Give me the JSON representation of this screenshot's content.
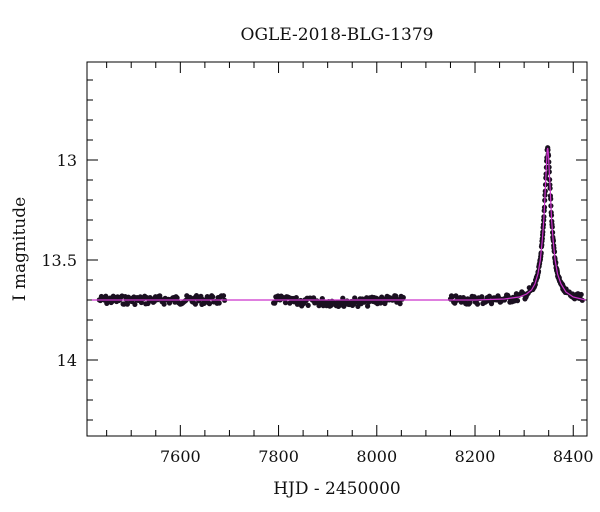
{
  "chart_data": {
    "type": "scatter",
    "title": "OGLE-2018-BLG-1379",
    "xlabel": "HJD - 2450000",
    "ylabel": "I magnitude",
    "xlim": [
      7410,
      8428
    ],
    "ylim": [
      14.38,
      12.51
    ],
    "y_axis_inverted": true,
    "x_ticks": [
      7600,
      7800,
      8000,
      8200,
      8400
    ],
    "y_ticks": [
      13,
      13.5,
      14
    ],
    "grid": false,
    "colors": {
      "points": "#1a1020",
      "model": "#cc33cc",
      "axes": "#000000"
    },
    "observation_seasons": [
      {
        "start": 7435,
        "end": 7692,
        "baseline": 13.7
      },
      {
        "start": 7790,
        "end": 8055,
        "baseline": 13.7
      },
      {
        "start": 8150,
        "end": 8420,
        "baseline": 13.7
      }
    ],
    "peak": {
      "x": 8347,
      "y": 12.94
    },
    "series": [
      {
        "type": "line",
        "points": [
          [
            7420,
            13.7
          ],
          [
            8200,
            13.7
          ],
          [
            8260,
            13.695
          ],
          [
            8290,
            13.685
          ],
          [
            8305,
            13.67
          ],
          [
            8315,
            13.65
          ],
          [
            8322,
            13.62
          ],
          [
            8328,
            13.57
          ],
          [
            8333,
            13.5
          ],
          [
            8337,
            13.4
          ],
          [
            8340,
            13.3
          ],
          [
            8342,
            13.2
          ],
          [
            8344,
            13.1
          ],
          [
            8346,
            13.0
          ],
          [
            8347,
            12.95
          ],
          [
            8348,
            12.94
          ],
          [
            8349,
            12.96
          ],
          [
            8350,
            13.0
          ],
          [
            8352,
            13.1
          ],
          [
            8354,
            13.2
          ],
          [
            8356,
            13.3
          ],
          [
            8359,
            13.4
          ],
          [
            8363,
            13.5
          ],
          [
            8368,
            13.57
          ],
          [
            8375,
            13.62
          ],
          [
            8385,
            13.66
          ],
          [
            8400,
            13.685
          ],
          [
            8425,
            13.7
          ]
        ]
      }
    ]
  }
}
